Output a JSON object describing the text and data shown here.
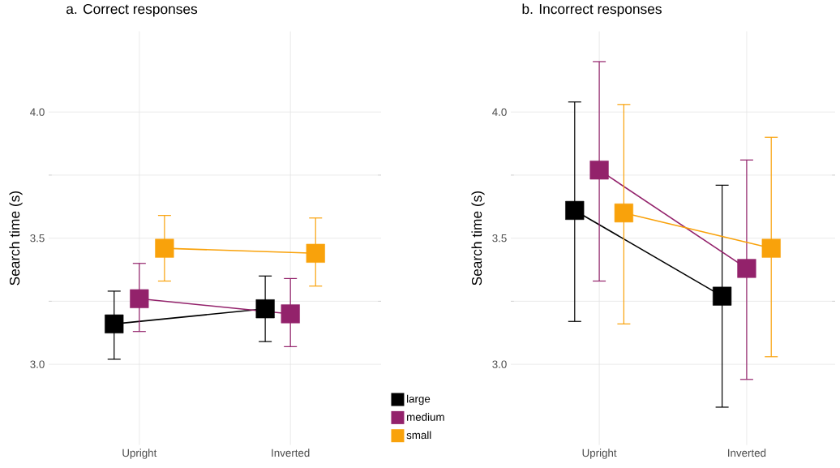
{
  "chart_data": [
    {
      "type": "line",
      "title": "a.  Correct responses",
      "ylabel": "Search time (s)",
      "categories": [
        "Upright",
        "Inverted"
      ],
      "ylim": [
        2.68,
        4.32
      ],
      "yticks": [
        {
          "value": 3,
          "label": "3.0"
        },
        {
          "value": 3.5,
          "label": "3.5"
        },
        {
          "value": 4,
          "label": "4.0"
        }
      ],
      "grid": true,
      "marker": "square",
      "legend": "bottom right",
      "series": [
        {
          "name": "large",
          "color": "#000000",
          "values": [
            3.16,
            3.22
          ],
          "errors": [
            [
              3.02,
              3.29
            ],
            [
              3.09,
              3.35
            ]
          ]
        },
        {
          "name": "medium",
          "color": "#93226b",
          "values": [
            3.26,
            3.2
          ],
          "errors": [
            [
              3.13,
              3.4
            ],
            [
              3.07,
              3.34
            ]
          ]
        },
        {
          "name": "small",
          "color": "#f9a20b",
          "values": [
            3.46,
            3.44
          ],
          "errors": [
            [
              3.33,
              3.59
            ],
            [
              3.31,
              3.58
            ]
          ]
        }
      ]
    },
    {
      "type": "line",
      "title": "b.  Incorrect responses",
      "ylabel": "Search time (s)",
      "categories": [
        "Upright",
        "Inverted"
      ],
      "ylim": [
        2.68,
        4.32
      ],
      "yticks": [
        {
          "value": 3,
          "label": "3.0"
        },
        {
          "value": 3.5,
          "label": "3.5"
        },
        {
          "value": 4,
          "label": "4.0"
        }
      ],
      "grid": true,
      "marker": "square",
      "series": [
        {
          "color": "#000000",
          "values": [
            3.61,
            3.27
          ],
          "errors": [
            [
              3.17,
              4.04
            ],
            [
              2.83,
              3.71
            ]
          ]
        },
        {
          "color": "#93226b",
          "values": [
            3.77,
            3.38
          ],
          "errors": [
            [
              3.33,
              4.2
            ],
            [
              2.94,
              3.81
            ]
          ]
        },
        {
          "color": "#f9a20b",
          "values": [
            3.6,
            3.46
          ],
          "errors": [
            [
              3.16,
              4.03
            ],
            [
              3.03,
              3.9
            ]
          ]
        }
      ]
    }
  ]
}
